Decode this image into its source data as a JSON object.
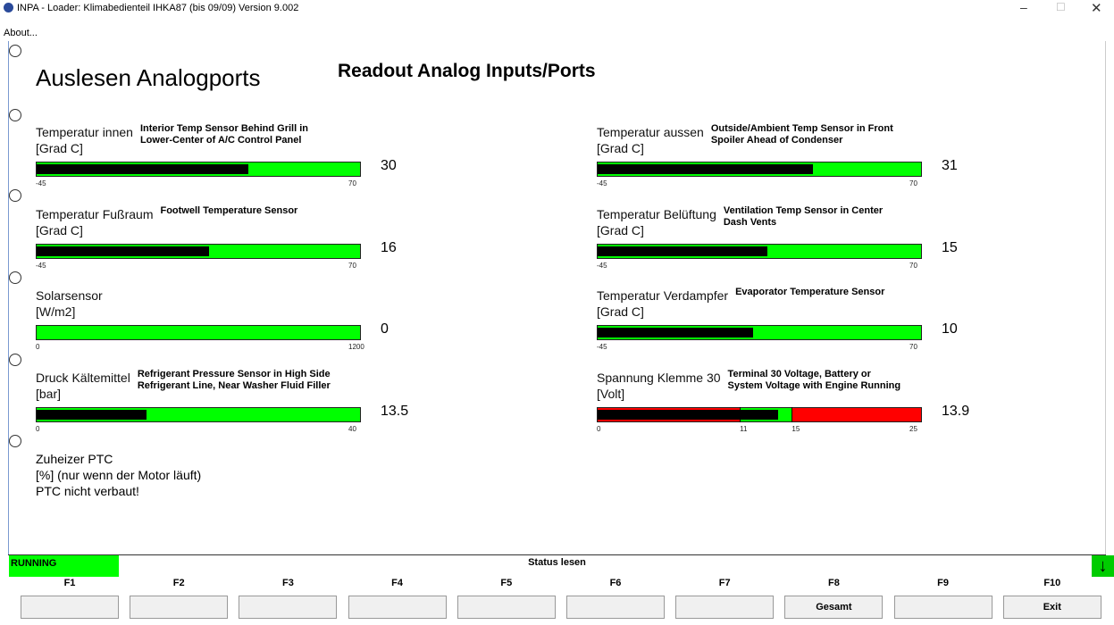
{
  "window": {
    "title": "INPA - Loader:  Klimabedienteil IHKA87 (bis 09/09) Version 9.002",
    "menu": "About..."
  },
  "heading": {
    "title": "Auslesen  Analogports",
    "annotation": "Readout Analog Inputs/Ports"
  },
  "gauges": [
    {
      "label": "Temperatur innen",
      "unit": "[Grad C]",
      "note": [
        "Interior Temp Sensor Behind Grill in",
        "Lower-Center of A/C Control Panel"
      ],
      "ticks": [
        -45,
        70
      ],
      "value": 30,
      "color": "#00ff00"
    },
    {
      "label": "Temperatur aussen",
      "unit": "[Grad C]",
      "note": [
        "Outside/Ambient Temp Sensor in Front",
        "Spoiler Ahead of Condenser"
      ],
      "ticks": [
        -45,
        70
      ],
      "value": 31,
      "color": "#00ff00"
    },
    {
      "label": "Temperatur Fußraum",
      "unit": "[Grad C]",
      "note": [
        "Footwell Temperature Sensor"
      ],
      "ticks": [
        -45,
        70
      ],
      "value": 16,
      "color": "#00ff00"
    },
    {
      "label": "Temperatur Belüftung",
      "unit": "[Grad C]",
      "note": [
        "Ventilation Temp Sensor in Center",
        "Dash Vents"
      ],
      "ticks": [
        -45,
        70
      ],
      "value": 15,
      "color": "#00ff00"
    },
    {
      "label": "Solarsensor",
      "unit": "[W/m2]",
      "ticks": [
        0,
        1200
      ],
      "value": 0,
      "color": "#00ff00"
    },
    {
      "label": "Temperatur Verdampfer",
      "unit": "[Grad C]",
      "note": [
        "Evaporator Temperature Sensor"
      ],
      "ticks": [
        -45,
        70
      ],
      "value": 10,
      "color": "#00ff00"
    },
    {
      "label": "Druck Kältemittel",
      "unit": "[bar]",
      "note": [
        "Refrigerant Pressure Sensor in High Side",
        "Refrigerant Line, Near Washer Fluid Filler"
      ],
      "ticks": [
        0,
        40
      ],
      "value": 13.5,
      "color": "#00ff00"
    },
    {
      "label": "Spannung Klemme 30",
      "unit": "[Volt]",
      "note": [
        "Terminal 30 Voltage, Battery or",
        "System Voltage with Engine Running"
      ],
      "ticks": [
        0,
        11,
        15,
        25
      ],
      "value": 13.9,
      "color": "#ff0000",
      "ok_range": [
        11,
        15
      ],
      "ok_color": "#00ff00"
    }
  ],
  "heater": [
    "Zuheizer PTC",
    "[%] (nur wenn der Motor läuft)",
    "PTC nicht verbaut!"
  ],
  "status": {
    "state": "RUNNING",
    "text": "Status lesen"
  },
  "keys": [
    {
      "key": "F1"
    },
    {
      "key": "F2"
    },
    {
      "key": "F3"
    },
    {
      "key": "F4"
    },
    {
      "key": "F5"
    },
    {
      "key": "F6"
    },
    {
      "key": "F7"
    },
    {
      "key": "F8",
      "label": "Gesamt"
    },
    {
      "key": "F9"
    },
    {
      "key": "F10",
      "label": "Exit"
    }
  ]
}
